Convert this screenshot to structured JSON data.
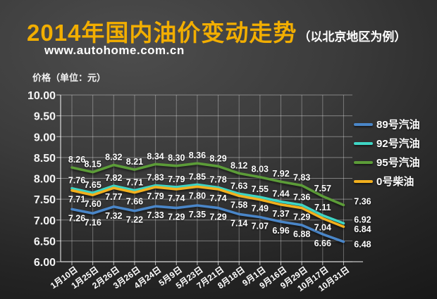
{
  "header": {
    "title": "2014年国内油价变动走势",
    "title_suffix": "（以北京地区为例）",
    "url": "www.autohome.com.cn"
  },
  "chart": {
    "y_axis_title": "价格（单位：元）"
  },
  "chart_data": {
    "type": "line",
    "title": "2014年国内油价变动走势（以北京地区为例）",
    "ylabel": "价格（单位：元）",
    "ylim": [
      6.0,
      10.0
    ],
    "y_tick_step": 0.5,
    "y_ticks": [
      "10.00",
      "9.50",
      "9.00",
      "8.50",
      "8.00",
      "7.50",
      "7.00",
      "6.50",
      "6.00"
    ],
    "grid": true,
    "legend_position": "right",
    "categories": [
      "1月10日",
      "1月25日",
      "2月26日",
      "3月26日",
      "4月24日",
      "5月9日",
      "5月23日",
      "7月21日",
      "8月18日",
      "9月1日",
      "9月16日",
      "9月29日",
      "10月17日",
      "10月31日"
    ],
    "series": [
      {
        "name": "89号汽油",
        "color": "#4a86c8",
        "label_side": "below",
        "values": [
          7.26,
          7.16,
          7.32,
          7.22,
          7.33,
          7.29,
          7.35,
          7.29,
          7.14,
          7.07,
          6.96,
          6.88,
          6.66,
          6.48
        ]
      },
      {
        "name": "92号汽油",
        "color": "#3fd6c5",
        "label_side": "above",
        "values": [
          7.76,
          7.65,
          7.82,
          7.71,
          7.83,
          7.79,
          7.85,
          7.78,
          7.63,
          7.55,
          7.44,
          7.36,
          7.11,
          6.92
        ]
      },
      {
        "name": "95号汽油",
        "color": "#5c9c38",
        "label_side": "above",
        "values": [
          8.26,
          8.15,
          8.32,
          8.21,
          8.34,
          8.3,
          8.36,
          8.29,
          8.12,
          8.03,
          7.92,
          7.83,
          7.57,
          7.36
        ]
      },
      {
        "name": "0号柴油",
        "color": "#f2b01e",
        "label_side": "below",
        "values": [
          7.71,
          7.6,
          7.77,
          7.66,
          7.79,
          7.74,
          7.8,
          7.74,
          7.58,
          7.49,
          7.37,
          7.29,
          7.04,
          6.84
        ]
      }
    ]
  }
}
